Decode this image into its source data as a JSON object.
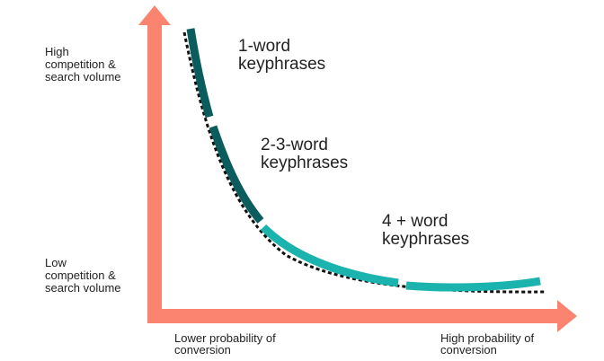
{
  "axes": {
    "y_top": [
      "High",
      "competition &",
      "search volume"
    ],
    "y_bottom": [
      "Low",
      "competition &",
      "search volume"
    ],
    "x_left": [
      "Lower probability of",
      "conversion"
    ],
    "x_right": [
      "High probability of",
      "conversion"
    ]
  },
  "segments": [
    {
      "label": [
        "1-word",
        "keyphrases"
      ]
    },
    {
      "label": [
        "2-3-word",
        "keyphrases"
      ]
    },
    {
      "label": [
        "4 + word",
        "keyphrases"
      ]
    }
  ]
}
